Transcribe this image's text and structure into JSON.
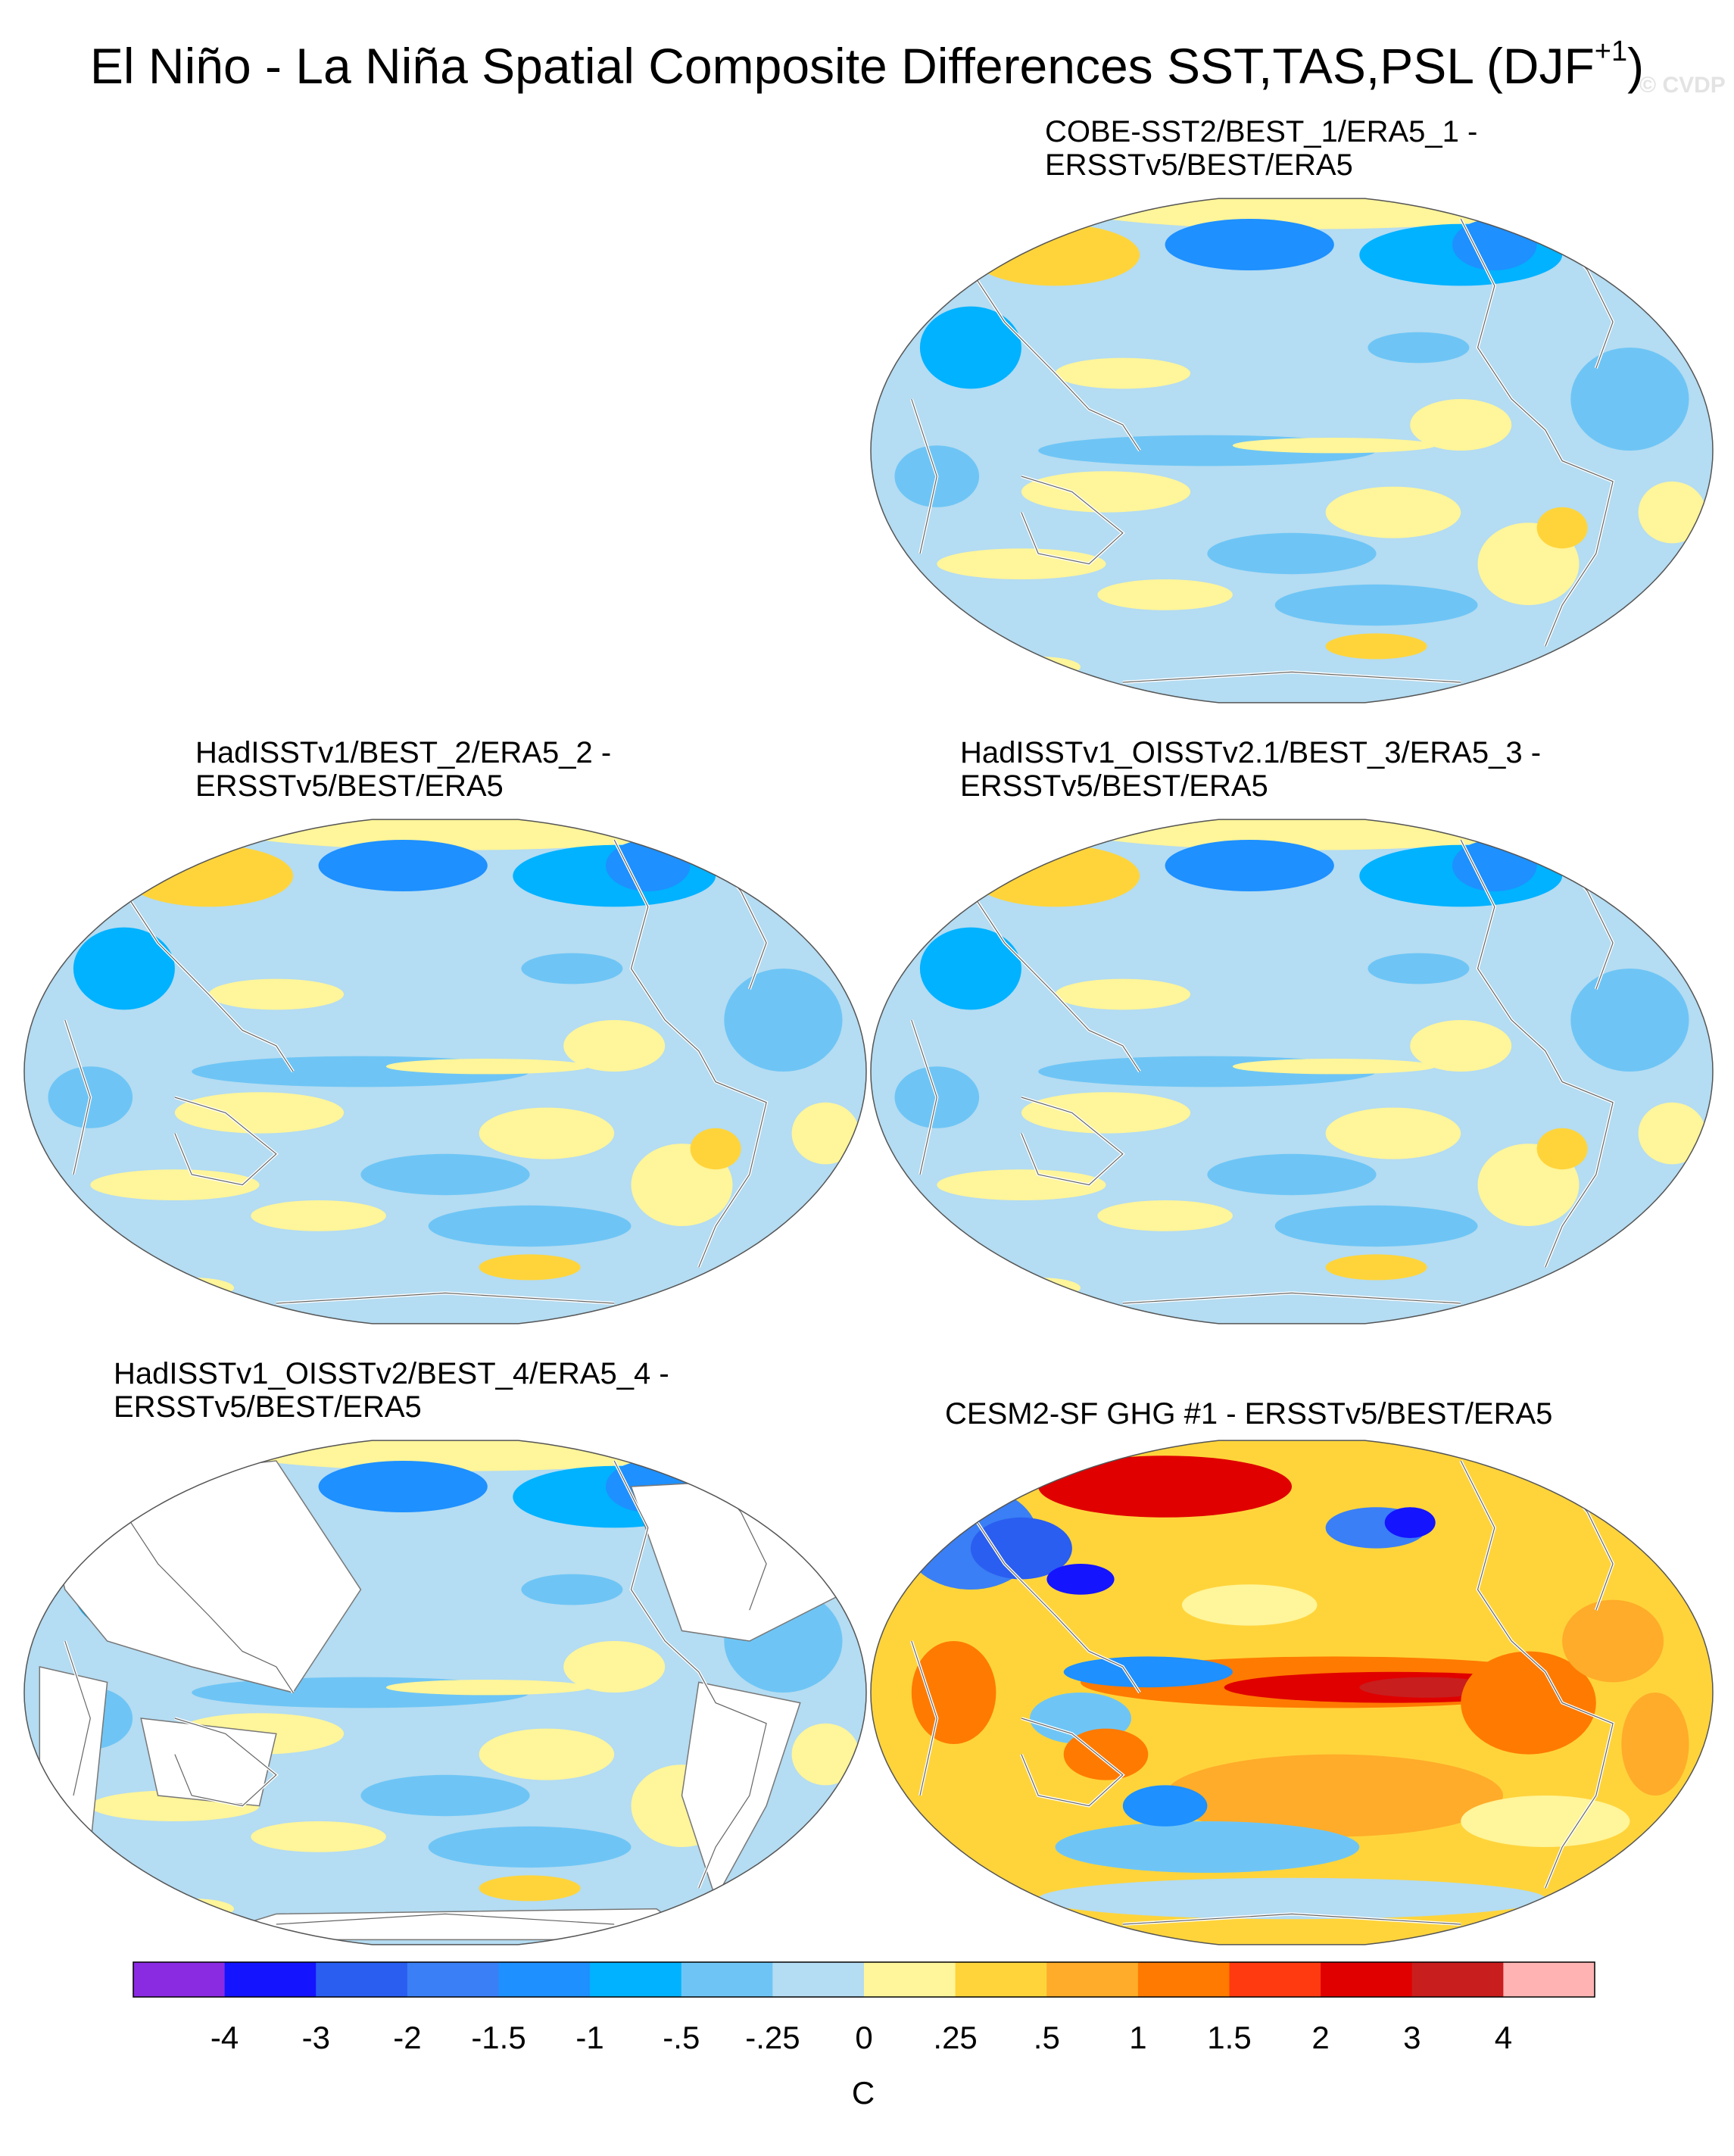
{
  "title_main": "El Niño - La Niña Spatial Composite Differences SST,TAS,PSL (DJF",
  "title_sup": "+1",
  "title_close": ")",
  "watermark": "© CVDP",
  "panels": [
    {
      "line1": "COBE-SST2/BEST_1/ERA5_1 -",
      "line2": "ERSSTv5/BEST/ERA5",
      "palette": "bias_blue_yellow",
      "land_blank": false
    },
    {
      "line1": "HadISSTv1/BEST_2/ERA5_2 -",
      "line2": "ERSSTv5/BEST/ERA5",
      "palette": "bias_blue_yellow",
      "land_blank": false
    },
    {
      "line1": "HadISSTv1_OISSTv2.1/BEST_3/ERA5_3 -",
      "line2": "ERSSTv5/BEST/ERA5",
      "palette": "bias_blue_yellow",
      "land_blank": false
    },
    {
      "line1": "HadISSTv1_OISSTv2/BEST_4/ERA5_4 -",
      "line2": "ERSSTv5/BEST/ERA5",
      "palette": "bias_blue_yellow",
      "land_blank": true
    },
    {
      "line1": "CESM2-SF GHG #1 - ERSSTv5/BEST/ERA5",
      "line2": "",
      "palette": "strong_warm",
      "land_blank": false
    }
  ],
  "chart_data": {
    "type": "heatmap",
    "projection": "Robinson (global, Pacific-centered)",
    "units": "C",
    "colorbar": {
      "levels": [
        "-4",
        "-3",
        "-2",
        "-1.5",
        "-1",
        "-.5",
        "-.25",
        "0",
        ".25",
        ".5",
        "1",
        "1.5",
        "2",
        "3",
        "4"
      ],
      "colors": [
        "#8a2be2",
        "#1414ff",
        "#2a5ef0",
        "#3a7ff5",
        "#1e90ff",
        "#00b2ff",
        "#6ec5f5",
        "#b4dcf2",
        "#fff59a",
        "#ffd43b",
        "#ffac2a",
        "#ff7a00",
        "#ff3a10",
        "#e00000",
        "#c81e1e",
        "#ffb3b3"
      ]
    },
    "colors": {
      "land_blank": "#ffffff",
      "map_outline": "#555555",
      "coast": "#ffffff"
    }
  }
}
